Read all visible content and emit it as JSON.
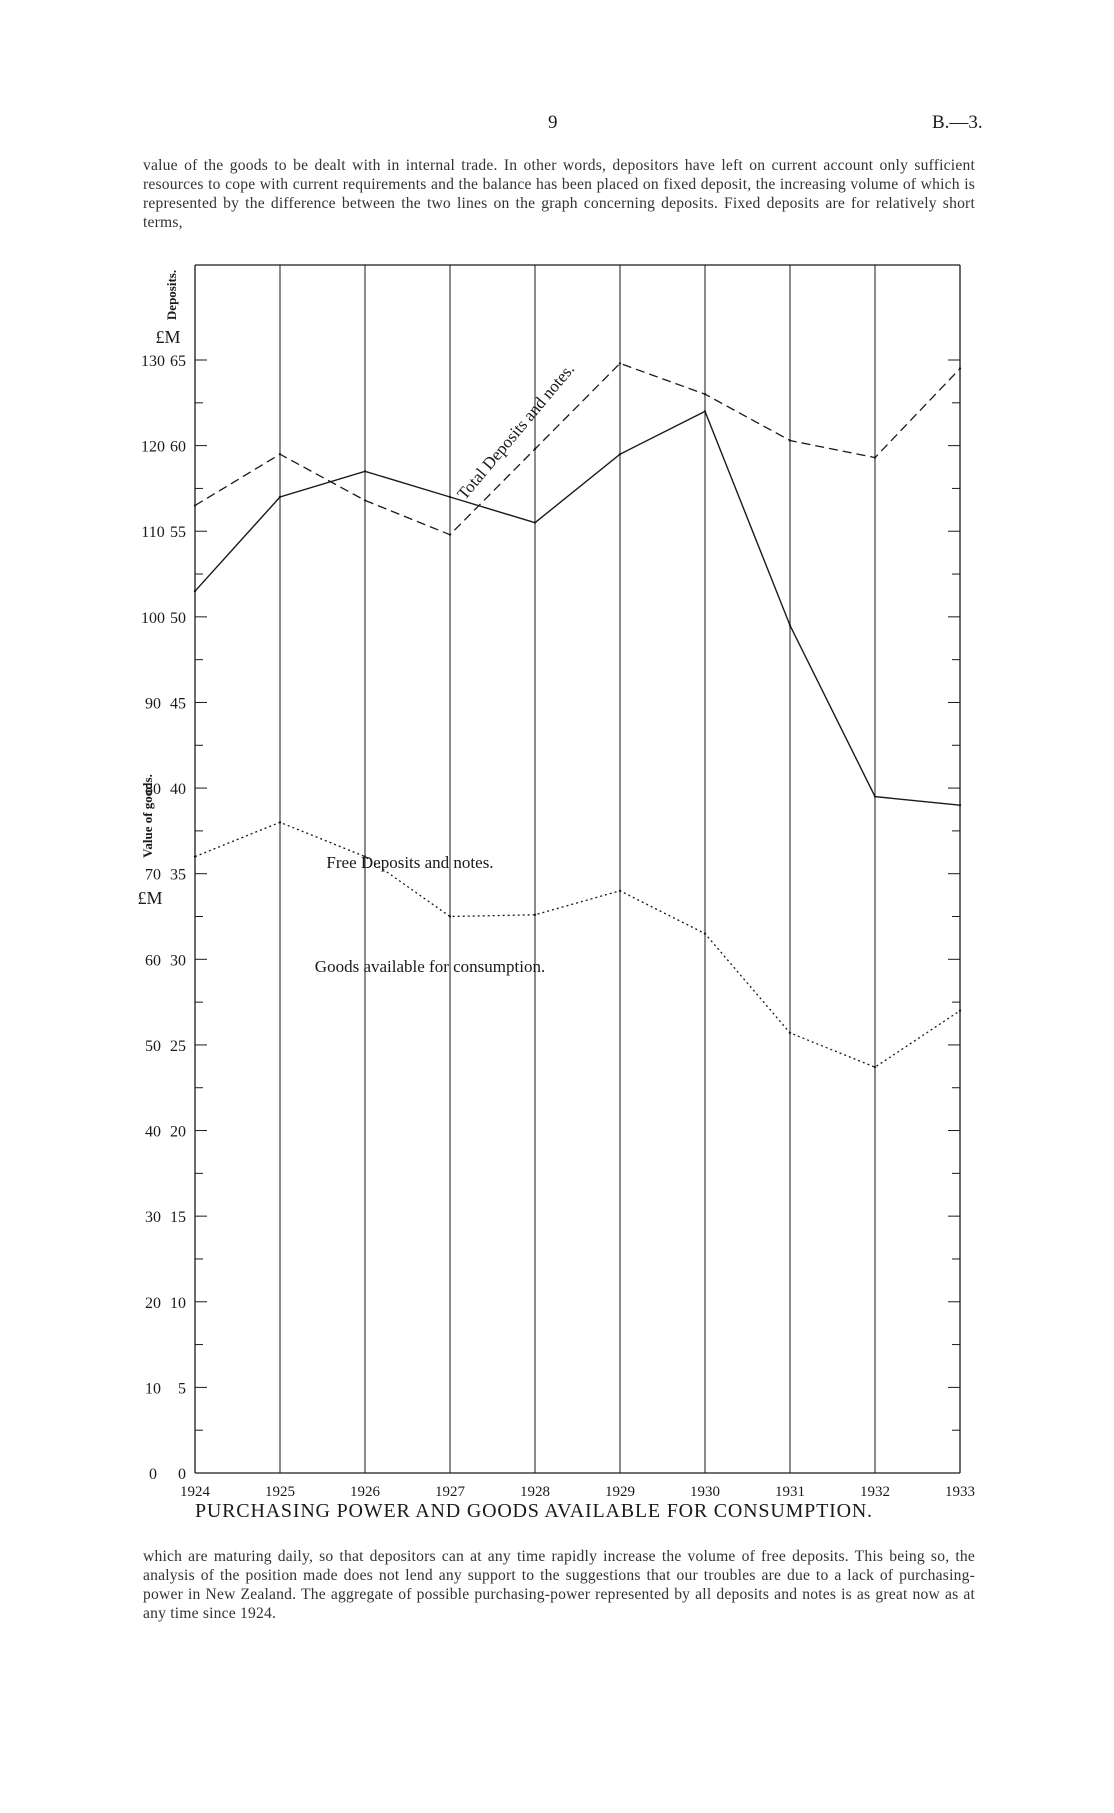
{
  "header": {
    "page_number": "9",
    "doc_ref": "B.—3."
  },
  "text": {
    "para_top": "value of the goods to be dealt with in internal trade. In other words, depositors have left on current account only sufficient resources to cope with current requirements and the balance has been placed on fixed deposit, the increasing volume of which is represented by the difference between the two lines on the graph concerning deposits. Fixed deposits are for relatively short terms,",
    "para_bottom": "which are maturing daily, so that depositors can at any time rapidly increase the volume of free deposits. This being so, the analysis of the position made does not lend any support to the suggestions that our troubles are due to a lack of purchasing-power in New Zealand. The aggregate of possible purchasing-power represented by all deposits and notes is as great now as at any time since 1924."
  },
  "chart_data": {
    "type": "line",
    "title": "PURCHASING POWER AND GOODS AVAILABLE FOR CONSUMPTION.",
    "x": [
      "1924",
      "1925",
      "1926",
      "1927",
      "1928",
      "1929",
      "1930",
      "1931",
      "1932",
      "1933"
    ],
    "y_axis_deposits": {
      "label": "Deposits.",
      "unit": "£M",
      "ticks": [
        "0",
        "5",
        "10",
        "15",
        "20",
        "25",
        "30",
        "35",
        "40",
        "45",
        "50",
        "55",
        "60",
        "65"
      ],
      "ylim": [
        0,
        65
      ]
    },
    "y_axis_goods": {
      "label": "Value of goods.",
      "unit": "£M",
      "ticks": [
        "0",
        "10",
        "20",
        "30",
        "40",
        "50",
        "60",
        "70",
        "80",
        "90",
        "100",
        "110",
        "120",
        "130"
      ],
      "ylim": [
        0,
        130
      ]
    },
    "series": [
      {
        "name": "Total Deposits and notes.",
        "axis": "deposits",
        "style": "dashed",
        "values": [
          56.5,
          59.5,
          56.8,
          54.8,
          59.8,
          64.8,
          63.0,
          60.3,
          59.3,
          64.5
        ]
      },
      {
        "name": "Free Deposits and notes.",
        "axis": "deposits",
        "style": "dotted",
        "values": [
          36.0,
          38.0,
          36.0,
          32.5,
          32.6,
          34.0,
          31.5,
          25.7,
          23.7,
          27.0
        ]
      },
      {
        "name": "Goods available for consumption.",
        "axis": "goods",
        "style": "solid",
        "values": [
          103,
          114,
          117,
          114,
          111,
          119,
          124,
          99,
          79,
          78
        ]
      }
    ],
    "grid": true,
    "colors": {
      "ink": "#1a1a1a",
      "paper": "#ffffff"
    }
  }
}
